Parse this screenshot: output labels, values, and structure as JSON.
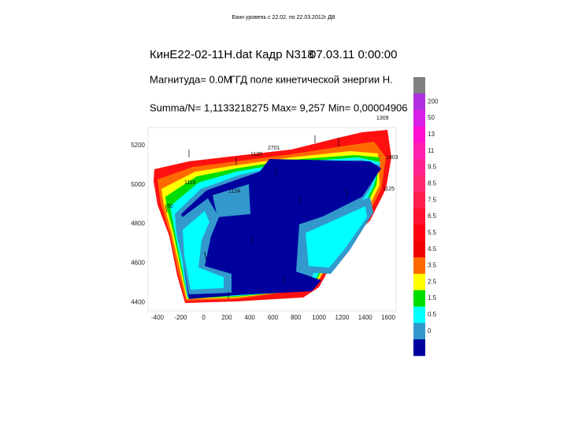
{
  "slide_title": "Екин уровень с 22.02. по 22.03.2012г ДВ",
  "header": {
    "file": "КинЕ22-02-11H.dat Кадр N318",
    "datetime": "07.03.11 0:00:00",
    "magnitude": "Магнитуда= 0.0M",
    "field": "ГГД поле кинетической энергии Н.",
    "stats": "Summa/N= 1,1133218275 Max= 9,257 Min= 0,00004906"
  },
  "x_ticks": [
    "-400",
    "-200",
    "0",
    "200",
    "400",
    "600",
    "800",
    "1000",
    "1200",
    "1400",
    "1600"
  ],
  "y_ticks": [
    "5200",
    "5000",
    "4800",
    "4600",
    "4400"
  ],
  "colorbar": [
    "200",
    "50",
    "13",
    "11",
    "9.5",
    "8.5",
    "7.5",
    "6.5",
    "5.5",
    "4.5",
    "3.5",
    "2.5",
    "1.5",
    "0.5",
    "0"
  ],
  "point_labels": [
    "1309",
    "2701",
    "1139",
    "1110",
    "1124",
    "1803",
    "1125",
    "50"
  ]
}
